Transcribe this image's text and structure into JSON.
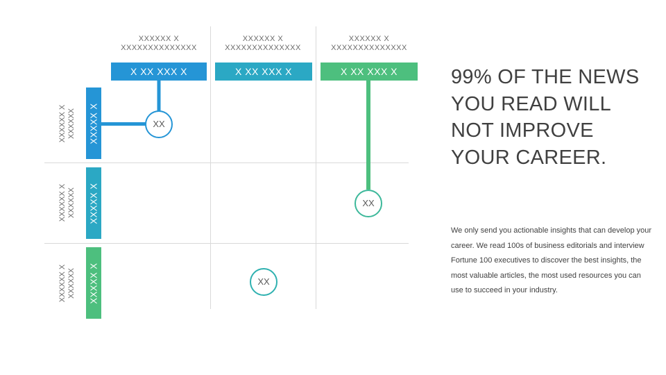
{
  "columns": [
    {
      "head_line1": "XXXXXX X",
      "head_line2": "XXXXXXXXXXXXXX",
      "label": "X XX XXX X"
    },
    {
      "head_line1": "XXXXXX X",
      "head_line2": "XXXXXXXXXXXXXX",
      "label": "X XX XXX X"
    },
    {
      "head_line1": "XXXXXX X",
      "head_line2": "XXXXXXXXXXXXXX",
      "label": "X XX XXX X"
    }
  ],
  "rows": [
    {
      "side_line1": "XXXXXX X",
      "side_line2": "XXXXXX",
      "label": "XXXXX X"
    },
    {
      "side_line1": "XXXXXX X",
      "side_line2": "XXXXXX",
      "label": "XXXXX X"
    },
    {
      "side_line1": "XXXXXX X",
      "side_line2": "XXXXXX",
      "label": "XXXXX X"
    }
  ],
  "nodes": [
    {
      "text": "XX"
    },
    {
      "text": "XX"
    },
    {
      "text": "XX"
    }
  ],
  "headline": "99% OF THE NEWS YOU READ WILL NOT IMPROVE YOUR CAREER.",
  "body": "We only send you actionable insights that can develop your career. We read 100s of business editorials and interview Fortune 100 executives to discover the best insights, the most valuable articles, the most used resources you can use to succeed in your industry.",
  "colors": {
    "blue": "#2595d6",
    "teal": "#2fb1b0",
    "green": "#4dbf7e",
    "grid": "#d9d9d9"
  }
}
